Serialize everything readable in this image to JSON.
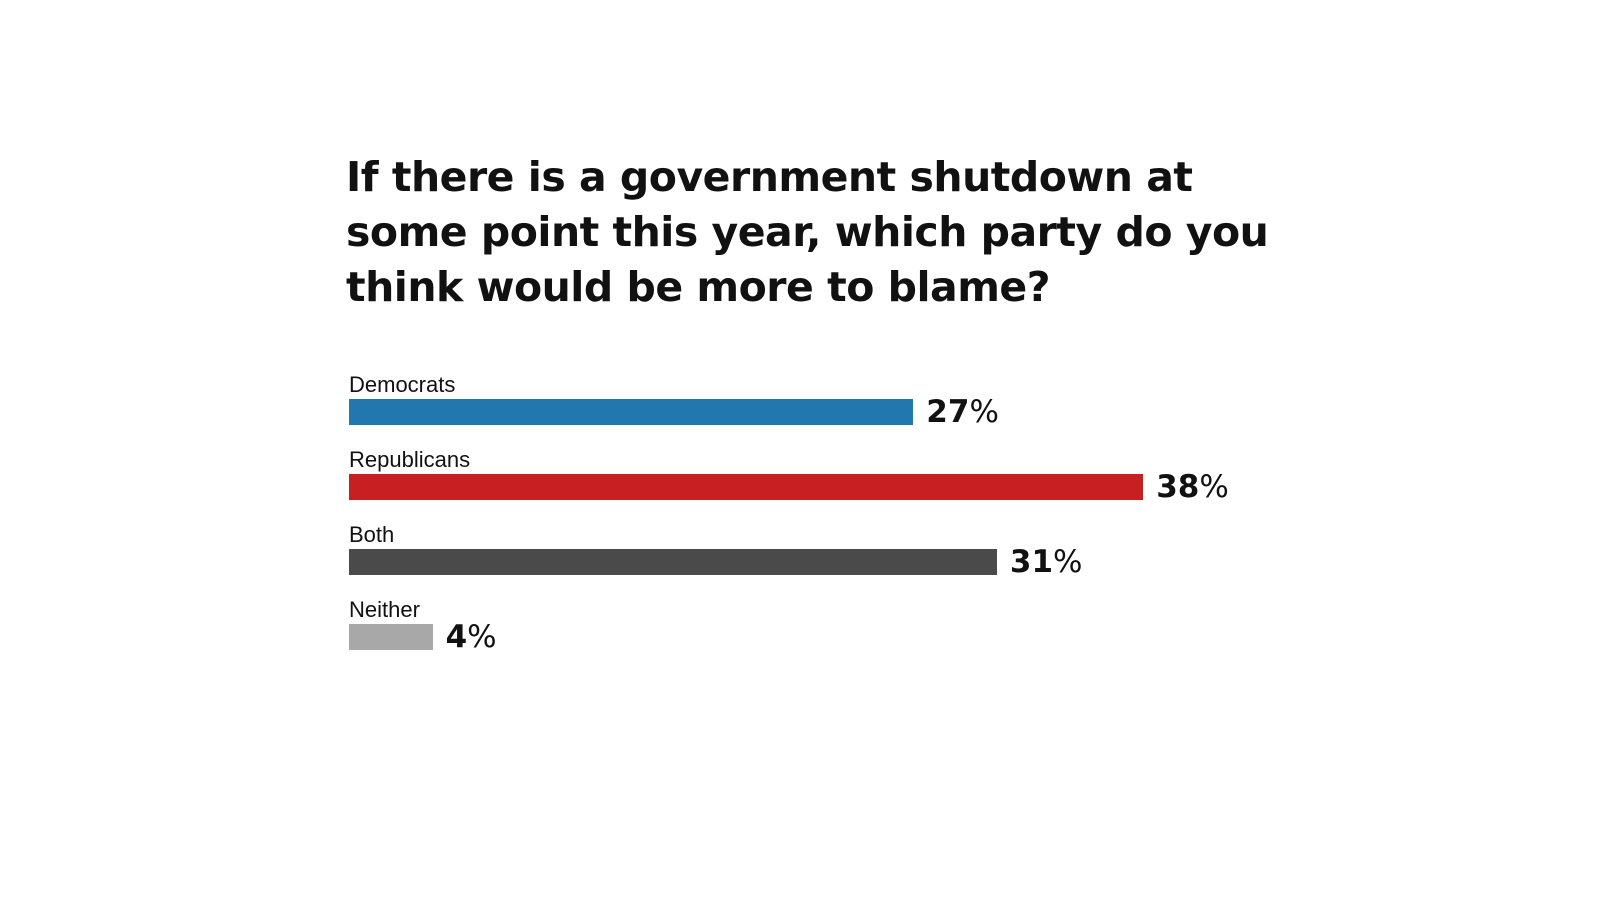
{
  "chart_data": {
    "type": "bar",
    "orientation": "horizontal",
    "title": "If there is a government shutdown at some point this year, which party do you think would be more to blame?",
    "categories": [
      "Democrats",
      "Republicans",
      "Both",
      "Neither"
    ],
    "values": [
      27,
      38,
      31,
      4
    ],
    "value_labels": [
      "27",
      "38",
      "31",
      "4"
    ],
    "value_suffix": "%",
    "colors": [
      "#2277ae",
      "#c82022",
      "#4a4a4a",
      "#a8a8a8"
    ],
    "xlim": [
      0,
      100
    ],
    "grid": false,
    "legend": "none"
  }
}
